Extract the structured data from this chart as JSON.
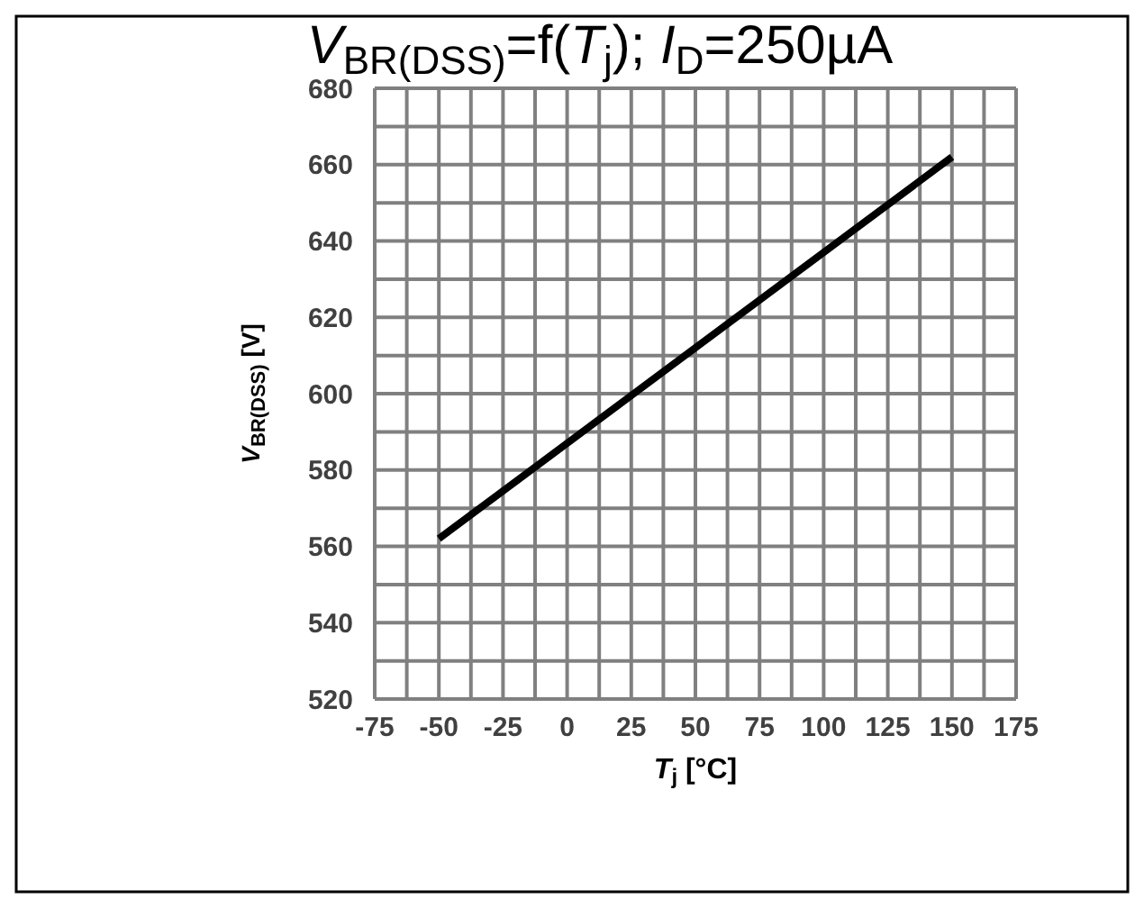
{
  "chart_data": {
    "type": "line",
    "title": "V$_{BR(DSS)}$=f(T$_{j}$); I$_{D}$=250µA",
    "xlabel": "T$_{j}$ [°C]",
    "ylabel": "V$_{BR(DSS)}$ [V]",
    "x": [
      -50,
      150
    ],
    "series": [
      {
        "color": "#000000",
        "values": [
          562,
          662
        ]
      }
    ],
    "xlim": [
      -75,
      175
    ],
    "xticks": [
      -75,
      {
        "value": -62.5,
        "label": null
      },
      -50,
      {
        "value": -37.5,
        "label": null
      },
      -25,
      {
        "value": -12.5,
        "label": null
      },
      0,
      {
        "value": 12.5,
        "label": null
      },
      25,
      {
        "value": 37.5,
        "label": null
      },
      50,
      {
        "value": 62.5,
        "label": null
      },
      75,
      {
        "value": 87.5,
        "label": null
      },
      100,
      {
        "value": 112.5,
        "label": null
      },
      125,
      {
        "value": 137.5,
        "label": null
      },
      150,
      {
        "value": 162.5,
        "label": null
      },
      175
    ],
    "ylim": [
      520,
      680
    ],
    "yticks": [
      520,
      {
        "value": 530,
        "label": null
      },
      540,
      {
        "value": 550,
        "label": null
      },
      560,
      {
        "value": 570,
        "label": null
      },
      580,
      {
        "value": 590,
        "label": null
      },
      600,
      {
        "value": 610,
        "label": null
      },
      620,
      {
        "value": 630,
        "label": null
      },
      640,
      {
        "value": 650,
        "label": null
      },
      660,
      {
        "value": 670,
        "label": null
      },
      680
    ],
    "grid": true,
    "legend": false,
    "marker": "none",
    "line_style": "solid"
  }
}
